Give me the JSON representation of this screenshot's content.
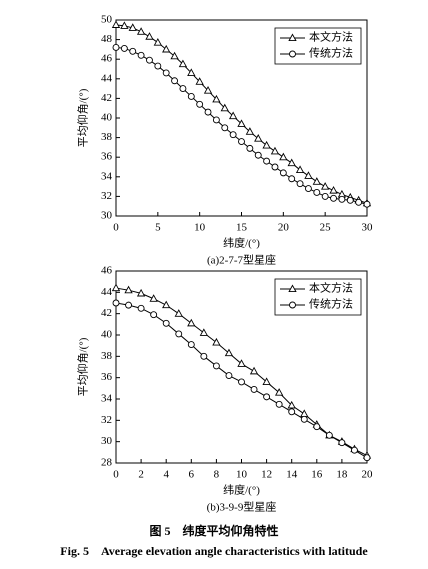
{
  "chart_data": [
    {
      "type": "line",
      "subtitle": "(a)2-7-7型星座",
      "x_label": "纬度/(°)",
      "y_label": "平均仰角/(°)",
      "x": [
        0,
        1,
        2,
        3,
        4,
        5,
        6,
        7,
        8,
        9,
        10,
        11,
        12,
        13,
        14,
        15,
        16,
        17,
        18,
        19,
        20,
        21,
        22,
        23,
        24,
        25,
        26,
        27,
        28,
        29,
        30
      ],
      "xlim": [
        0,
        30
      ],
      "xticks": [
        0,
        5,
        10,
        15,
        20,
        25,
        30
      ],
      "ylim": [
        30,
        50
      ],
      "yticks": [
        30,
        32,
        34,
        36,
        38,
        40,
        42,
        44,
        46,
        48,
        50
      ],
      "legend": "upper right",
      "series": [
        {
          "name": "本文方法",
          "color": "#000000",
          "marker": "triangle",
          "values": [
            49.5,
            49.4,
            49.2,
            48.8,
            48.3,
            47.7,
            47.0,
            46.3,
            45.5,
            44.6,
            43.7,
            42.8,
            41.9,
            41.0,
            40.2,
            39.4,
            38.6,
            37.9,
            37.2,
            36.6,
            36.0,
            35.4,
            34.7,
            34.1,
            33.5,
            33.0,
            32.6,
            32.2,
            31.9,
            31.6,
            31.3
          ]
        },
        {
          "name": "传统方法",
          "color": "#000000",
          "marker": "circle",
          "values": [
            47.2,
            47.1,
            46.8,
            46.4,
            45.9,
            45.3,
            44.6,
            43.8,
            43.0,
            42.2,
            41.4,
            40.6,
            39.8,
            39.0,
            38.3,
            37.6,
            36.9,
            36.2,
            35.6,
            35.0,
            34.4,
            33.8,
            33.3,
            32.8,
            32.4,
            32.0,
            31.8,
            31.7,
            31.6,
            31.4,
            31.2
          ]
        }
      ]
    },
    {
      "type": "line",
      "subtitle": "(b)3-9-9型星座",
      "x_label": "纬度/(°)",
      "y_label": "平均仰角/(°)",
      "x": [
        0,
        1,
        2,
        3,
        4,
        5,
        6,
        7,
        8,
        9,
        10,
        11,
        12,
        13,
        14,
        15,
        16,
        17,
        18,
        19,
        20
      ],
      "xlim": [
        0,
        20
      ],
      "xticks": [
        0,
        2,
        4,
        6,
        8,
        10,
        12,
        14,
        16,
        18,
        20
      ],
      "ylim": [
        28,
        46
      ],
      "yticks": [
        28,
        30,
        32,
        34,
        36,
        38,
        40,
        42,
        44,
        46
      ],
      "legend": "upper right",
      "series": [
        {
          "name": "本文方法",
          "color": "#000000",
          "marker": "triangle",
          "values": [
            44.4,
            44.2,
            43.9,
            43.4,
            42.8,
            42.0,
            41.1,
            40.2,
            39.3,
            38.3,
            37.3,
            36.6,
            35.6,
            34.6,
            33.4,
            32.6,
            31.6,
            30.6,
            30.0,
            29.3,
            28.7
          ]
        },
        {
          "name": "传统方法",
          "color": "#000000",
          "marker": "circle",
          "values": [
            43.0,
            42.8,
            42.5,
            41.9,
            41.1,
            40.1,
            39.1,
            38.0,
            37.1,
            36.2,
            35.6,
            34.9,
            34.2,
            33.5,
            32.8,
            32.1,
            31.4,
            30.6,
            29.9,
            29.2,
            28.5
          ]
        }
      ]
    }
  ],
  "caption": {
    "zh": "图 5　纬度平均仰角特性",
    "en": "Fig. 5　Average elevation angle characteristics with latitude"
  }
}
